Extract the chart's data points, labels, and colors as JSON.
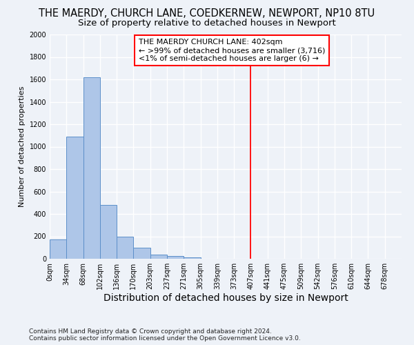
{
  "title_line1": "THE MAERDY, CHURCH LANE, COEDKERNEW, NEWPORT, NP10 8TU",
  "title_line2": "Size of property relative to detached houses in Newport",
  "xlabel": "Distribution of detached houses by size in Newport",
  "ylabel": "Number of detached properties",
  "footer": "Contains HM Land Registry data © Crown copyright and database right 2024.\nContains public sector information licensed under the Open Government Licence v3.0.",
  "bin_labels": [
    "0sqm",
    "34sqm",
    "68sqm",
    "102sqm",
    "136sqm",
    "170sqm",
    "203sqm",
    "237sqm",
    "271sqm",
    "305sqm",
    "339sqm",
    "373sqm",
    "407sqm",
    "441sqm",
    "475sqm",
    "509sqm",
    "542sqm",
    "576sqm",
    "610sqm",
    "644sqm",
    "678sqm"
  ],
  "bar_heights": [
    170,
    1090,
    1620,
    480,
    200,
    100,
    40,
    25,
    10,
    0,
    0,
    0,
    0,
    0,
    0,
    0,
    0,
    0,
    0,
    0,
    0
  ],
  "bar_color": "#aec6e8",
  "bar_edge_color": "#5b8fc9",
  "vline_x_index": 12,
  "vline_color": "red",
  "annotation_line1": "THE MAERDY CHURCH LANE: 402sqm",
  "annotation_line2": "← >99% of detached houses are smaller (3,716)",
  "annotation_line3": "<1% of semi-detached houses are larger (6) →",
  "annotation_box_color": "white",
  "annotation_box_edge": "red",
  "ylim": [
    0,
    2000
  ],
  "yticks": [
    0,
    200,
    400,
    600,
    800,
    1000,
    1200,
    1400,
    1600,
    1800,
    2000
  ],
  "background_color": "#eef2f8",
  "grid_color": "white",
  "title_fontsize": 10.5,
  "subtitle_fontsize": 9.5,
  "xlabel_fontsize": 10,
  "ylabel_fontsize": 8,
  "tick_fontsize": 7,
  "annot_fontsize": 8,
  "footer_fontsize": 6.5
}
